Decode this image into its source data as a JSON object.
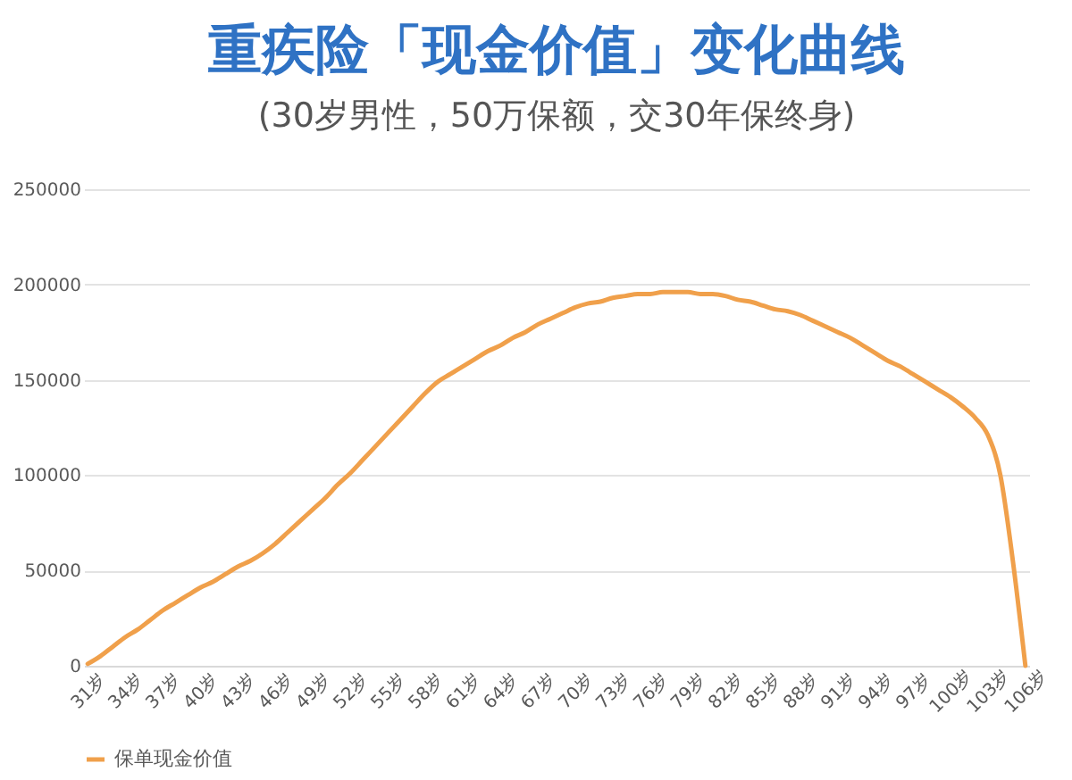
{
  "chart_data": {
    "type": "line",
    "title": "重疾险「现金价值」变化曲线",
    "subtitle": "(30岁男性，50万保额，交30年保终身)",
    "categories": [
      "31岁",
      null,
      null,
      "34岁",
      null,
      null,
      "37岁",
      null,
      null,
      "40岁",
      null,
      null,
      "43岁",
      null,
      null,
      "46岁",
      null,
      null,
      "49岁",
      null,
      null,
      "52岁",
      null,
      null,
      "55岁",
      null,
      null,
      "58岁",
      null,
      null,
      "61岁",
      null,
      null,
      "64岁",
      null,
      null,
      "67岁",
      null,
      null,
      "70岁",
      null,
      null,
      "73岁",
      null,
      null,
      "76岁",
      null,
      null,
      "79岁",
      null,
      null,
      "82岁",
      null,
      null,
      "85岁",
      null,
      null,
      "88岁",
      null,
      null,
      "91岁",
      null,
      null,
      "94岁",
      null,
      null,
      "97岁",
      null,
      null,
      "100岁",
      null,
      null,
      "103岁",
      null,
      null,
      "106岁"
    ],
    "series": [
      {
        "name": "保单现金价值",
        "color": "#f0a04b",
        "values": [
          1000,
          5000,
          10000,
          15000,
          19000,
          24000,
          29000,
          33000,
          37000,
          41000,
          44000,
          48000,
          52000,
          55000,
          59000,
          64000,
          70000,
          76000,
          82000,
          88000,
          95000,
          101000,
          108000,
          115000,
          122000,
          129000,
          136000,
          143000,
          149000,
          153000,
          157000,
          161000,
          165000,
          168000,
          172000,
          175000,
          179000,
          182000,
          185000,
          188000,
          190000,
          191000,
          193000,
          194000,
          195000,
          195000,
          196000,
          196000,
          196000,
          195000,
          195000,
          194000,
          192000,
          191000,
          189000,
          187000,
          186000,
          184000,
          181000,
          178000,
          175000,
          172000,
          168000,
          164000,
          160000,
          157000,
          153000,
          149000,
          145000,
          141000,
          136000,
          130000,
          121000,
          100000,
          55000,
          0
        ]
      }
    ],
    "ylim": [
      0,
      250000
    ],
    "yticks": [
      0,
      50000,
      100000,
      150000,
      200000,
      250000
    ],
    "grid": "y",
    "legend": "bottom"
  }
}
